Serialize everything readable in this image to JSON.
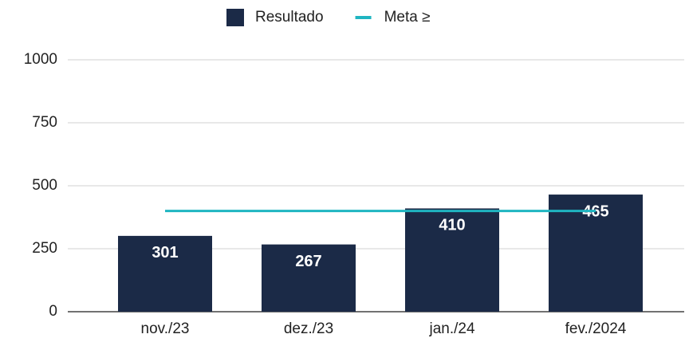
{
  "chart_data": {
    "type": "bar",
    "categories": [
      "nov./23",
      "dez./23",
      "jan./24",
      "fev./2024"
    ],
    "series": [
      {
        "name": "Resultado",
        "type": "bar",
        "color": "#1b2a47",
        "values": [
          301,
          267,
          410,
          465
        ]
      },
      {
        "name": "Meta ≥",
        "type": "line",
        "color": "#1fb5c1",
        "values": [
          400,
          400,
          400,
          400
        ]
      }
    ],
    "ylim": [
      0,
      1000
    ],
    "yticks": [
      0,
      250,
      500,
      750,
      1000
    ],
    "grid": true,
    "legend": "top"
  }
}
